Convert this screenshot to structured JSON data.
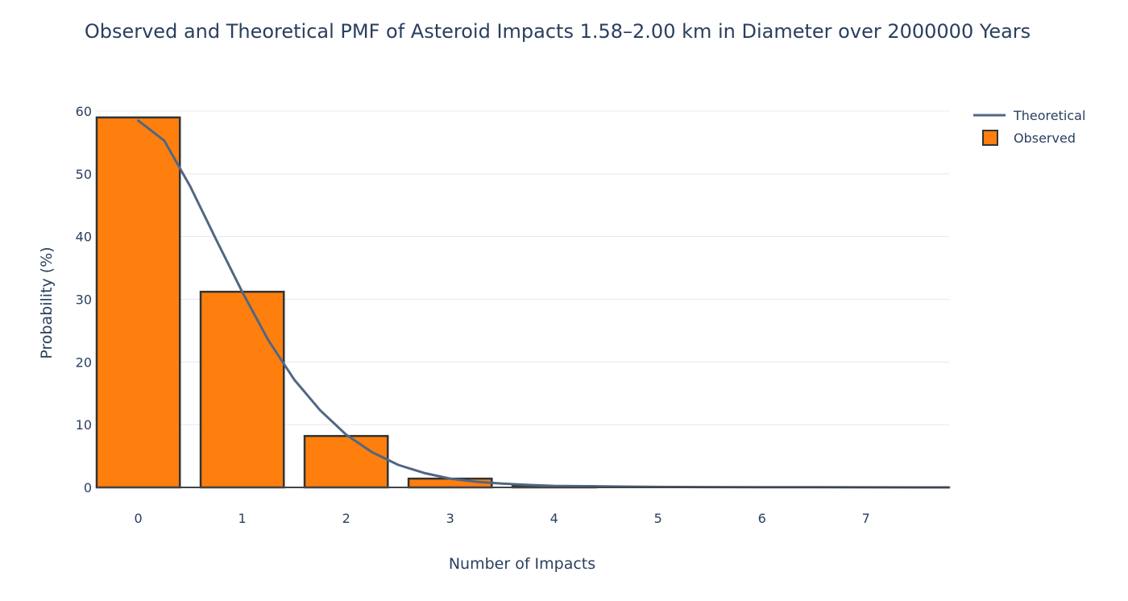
{
  "chart_data": {
    "type": "bar",
    "title": "Observed and Theoretical PMF of Asteroid Impacts 1.58–2.00 km in Diameter over 2000000 Years",
    "xlabel": "Number of Impacts",
    "ylabel": "Probability (%)",
    "categories": [
      "0",
      "1",
      "2",
      "3",
      "4",
      "5",
      "6",
      "7"
    ],
    "ylim": [
      0,
      60
    ],
    "xlim": [
      -0.4,
      7.8
    ],
    "yticks": [
      0,
      10,
      20,
      30,
      40,
      50,
      60
    ],
    "grid": true,
    "legend_position": "top-right",
    "series": [
      {
        "name": "Observed",
        "kind": "bar",
        "color": "#ff7f0e",
        "edge_color": "#333333",
        "x": [
          0,
          1,
          2,
          3,
          4
        ],
        "values": [
          59.0,
          31.2,
          8.2,
          1.4,
          0.2
        ]
      },
      {
        "name": "Theoretical",
        "kind": "line",
        "color": "#506784",
        "x": [
          0,
          0.25,
          0.5,
          0.75,
          1,
          1.25,
          1.5,
          1.75,
          2,
          2.25,
          2.5,
          2.75,
          3,
          3.25,
          3.5,
          3.75,
          4,
          4.5,
          5,
          5.5,
          6,
          6.5,
          7,
          7.8
        ],
        "values": [
          58.5,
          55.3,
          48.0,
          39.5,
          31.2,
          23.5,
          17.2,
          12.3,
          8.4,
          5.6,
          3.6,
          2.3,
          1.4,
          0.9,
          0.6,
          0.4,
          0.25,
          0.15,
          0.08,
          0.05,
          0.03,
          0.02,
          0.01,
          0.0
        ]
      }
    ]
  }
}
